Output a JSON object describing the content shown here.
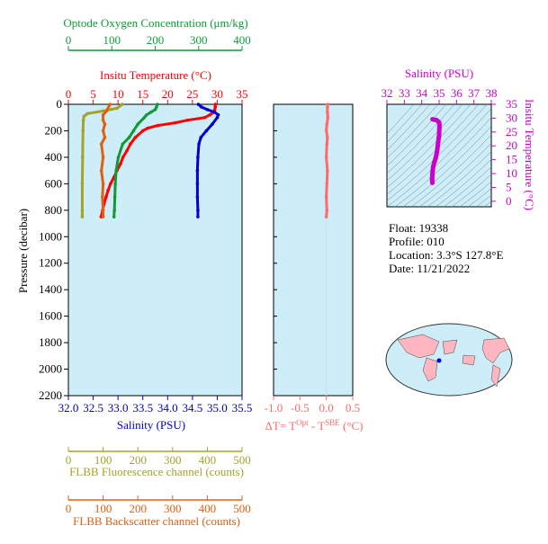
{
  "colors": {
    "oxygen": "#119a37",
    "temperature": "#ff0000",
    "salinity": "#0000cc",
    "fluorescence": "#a3a32c",
    "backscatter": "#e06010",
    "dt": "#ff6a6a",
    "ts": "#cc00cc",
    "panel_bg": "#cdeef8"
  },
  "chart_data": [
    {
      "type": "line",
      "ylabel": "Pressure (decibar)",
      "ylim": [
        2200,
        0
      ],
      "y_ticks": [
        "0",
        "200",
        "400",
        "600",
        "800",
        "1000",
        "1200",
        "1400",
        "1600",
        "1800",
        "2000",
        "2200"
      ],
      "axes": {
        "oxygen": {
          "label": "Optode Oxygen Concentration (μm/kg)",
          "range": [
            0,
            400
          ],
          "ticks": [
            "0",
            "100",
            "200",
            "300",
            "400"
          ]
        },
        "temperature": {
          "label": "Insitu Temperature (°C)",
          "range": [
            0,
            35
          ],
          "ticks": [
            "0",
            "5",
            "10",
            "15",
            "20",
            "25",
            "30",
            "35"
          ]
        },
        "salinity": {
          "label": "Salinity (PSU)",
          "range": [
            32,
            35.5
          ],
          "ticks": [
            "32.0",
            "32.5",
            "33.0",
            "33.5",
            "34.0",
            "34.5",
            "35.0",
            "35.5"
          ]
        },
        "fluorescence": {
          "label": "FLBB Fluorescence channel (counts)",
          "range": [
            0,
            500
          ],
          "ticks": [
            "0",
            "100",
            "200",
            "300",
            "400",
            "500"
          ]
        },
        "backscatter": {
          "label": "FLBB Backscatter channel (counts)",
          "range": [
            0,
            500
          ],
          "ticks": [
            "0",
            "100",
            "200",
            "300",
            "400",
            "500"
          ]
        }
      },
      "series": [
        {
          "key": "temperature",
          "points": [
            [
              0,
              29.6
            ],
            [
              20,
              29.6
            ],
            [
              40,
              29.5
            ],
            [
              60,
              29.3
            ],
            [
              80,
              28.5
            ],
            [
              100,
              27.5
            ],
            [
              120,
              24.0
            ],
            [
              140,
              21.5
            ],
            [
              160,
              18.0
            ],
            [
              180,
              16.0
            ],
            [
              200,
              15.0
            ],
            [
              250,
              13.5
            ],
            [
              300,
              12.5
            ],
            [
              350,
              11.8
            ],
            [
              400,
              11.0
            ],
            [
              450,
              10.5
            ],
            [
              500,
              9.8
            ],
            [
              550,
              9.2
            ],
            [
              600,
              8.5
            ],
            [
              650,
              8.0
            ],
            [
              700,
              7.6
            ],
            [
              750,
              7.2
            ],
            [
              800,
              6.9
            ],
            [
              850,
              6.6
            ]
          ]
        },
        {
          "key": "salinity",
          "points": [
            [
              0,
              34.62
            ],
            [
              20,
              34.68
            ],
            [
              40,
              34.8
            ],
            [
              60,
              34.95
            ],
            [
              80,
              35.02
            ],
            [
              100,
              35.0
            ],
            [
              150,
              34.9
            ],
            [
              200,
              34.78
            ],
            [
              250,
              34.67
            ],
            [
              300,
              34.63
            ],
            [
              400,
              34.61
            ],
            [
              500,
              34.6
            ],
            [
              600,
              34.6
            ],
            [
              700,
              34.6
            ],
            [
              800,
              34.61
            ],
            [
              850,
              34.61
            ]
          ]
        },
        {
          "key": "oxygen",
          "points": [
            [
              0,
              205
            ],
            [
              20,
              203
            ],
            [
              40,
              200
            ],
            [
              60,
              190
            ],
            [
              80,
              180
            ],
            [
              100,
              175
            ],
            [
              150,
              160
            ],
            [
              200,
              150
            ],
            [
              250,
              140
            ],
            [
              300,
              125
            ],
            [
              400,
              115
            ],
            [
              500,
              110
            ],
            [
              600,
              108
            ],
            [
              700,
              107
            ],
            [
              800,
              106
            ],
            [
              850,
              105
            ]
          ]
        },
        {
          "key": "fluorescence",
          "points": [
            [
              0,
              155
            ],
            [
              30,
              140
            ],
            [
              50,
              100
            ],
            [
              70,
              55
            ],
            [
              90,
              45
            ],
            [
              120,
              43
            ],
            [
              200,
              42
            ],
            [
              400,
              41
            ],
            [
              600,
              40
            ],
            [
              800,
              40
            ],
            [
              850,
              40
            ]
          ]
        },
        {
          "key": "backscatter",
          "points": [
            [
              0,
              120
            ],
            [
              50,
              110
            ],
            [
              80,
              100
            ],
            [
              120,
              100
            ],
            [
              150,
              105
            ],
            [
              200,
              100
            ],
            [
              250,
              105
            ],
            [
              300,
              95
            ],
            [
              400,
              100
            ],
            [
              500,
              95
            ],
            [
              600,
              100
            ],
            [
              700,
              98
            ],
            [
              800,
              100
            ],
            [
              850,
              100
            ]
          ]
        }
      ]
    },
    {
      "type": "line",
      "xlabel": "ΔT= T^Opt - T^SBE (°C)",
      "xlim": [
        -1.0,
        0.5
      ],
      "x_ticks": [
        "-1.0",
        "-0.5",
        "0.0",
        "0.5"
      ],
      "series": [
        {
          "key": "dt",
          "points": [
            [
              0,
              0.03
            ],
            [
              20,
              0.02
            ],
            [
              60,
              0.02
            ],
            [
              100,
              0.03
            ],
            [
              150,
              0.01
            ],
            [
              200,
              0.0
            ],
            [
              250,
              0.02
            ],
            [
              300,
              0.01
            ],
            [
              400,
              0.0
            ],
            [
              500,
              0.02
            ],
            [
              600,
              0.01
            ],
            [
              700,
              0.0
            ],
            [
              800,
              0.01
            ],
            [
              850,
              0.0
            ]
          ]
        }
      ]
    },
    {
      "type": "scatter",
      "xlabel": "Salinity (PSU)",
      "ylabel": "Insitu Temperature (°C)",
      "xlim": [
        32,
        38
      ],
      "ylim": [
        -2,
        35
      ],
      "x_ticks": [
        "32",
        "33",
        "34",
        "35",
        "36",
        "37",
        "38"
      ],
      "y_ticks": [
        "0",
        "5",
        "10",
        "15",
        "20",
        "25",
        "30",
        "35"
      ],
      "series": [
        {
          "key": "ts",
          "points": [
            [
              34.62,
              29.6
            ],
            [
              34.68,
              29.5
            ],
            [
              34.85,
              29.3
            ],
            [
              35.0,
              28.5
            ],
            [
              35.02,
              27.5
            ],
            [
              35.0,
              24.0
            ],
            [
              34.95,
              21.5
            ],
            [
              34.88,
              18.0
            ],
            [
              34.8,
              15.5
            ],
            [
              34.72,
              14.0
            ],
            [
              34.66,
              12.5
            ],
            [
              34.63,
              11.0
            ],
            [
              34.61,
              9.5
            ],
            [
              34.6,
              8.5
            ],
            [
              34.6,
              7.6
            ],
            [
              34.61,
              6.6
            ]
          ]
        }
      ]
    }
  ],
  "info": {
    "float": "Float:  19338",
    "profile": "Profile:  010",
    "location": "Location:  3.3°S  127.8°E",
    "date": "Date:  11/21/2022"
  }
}
